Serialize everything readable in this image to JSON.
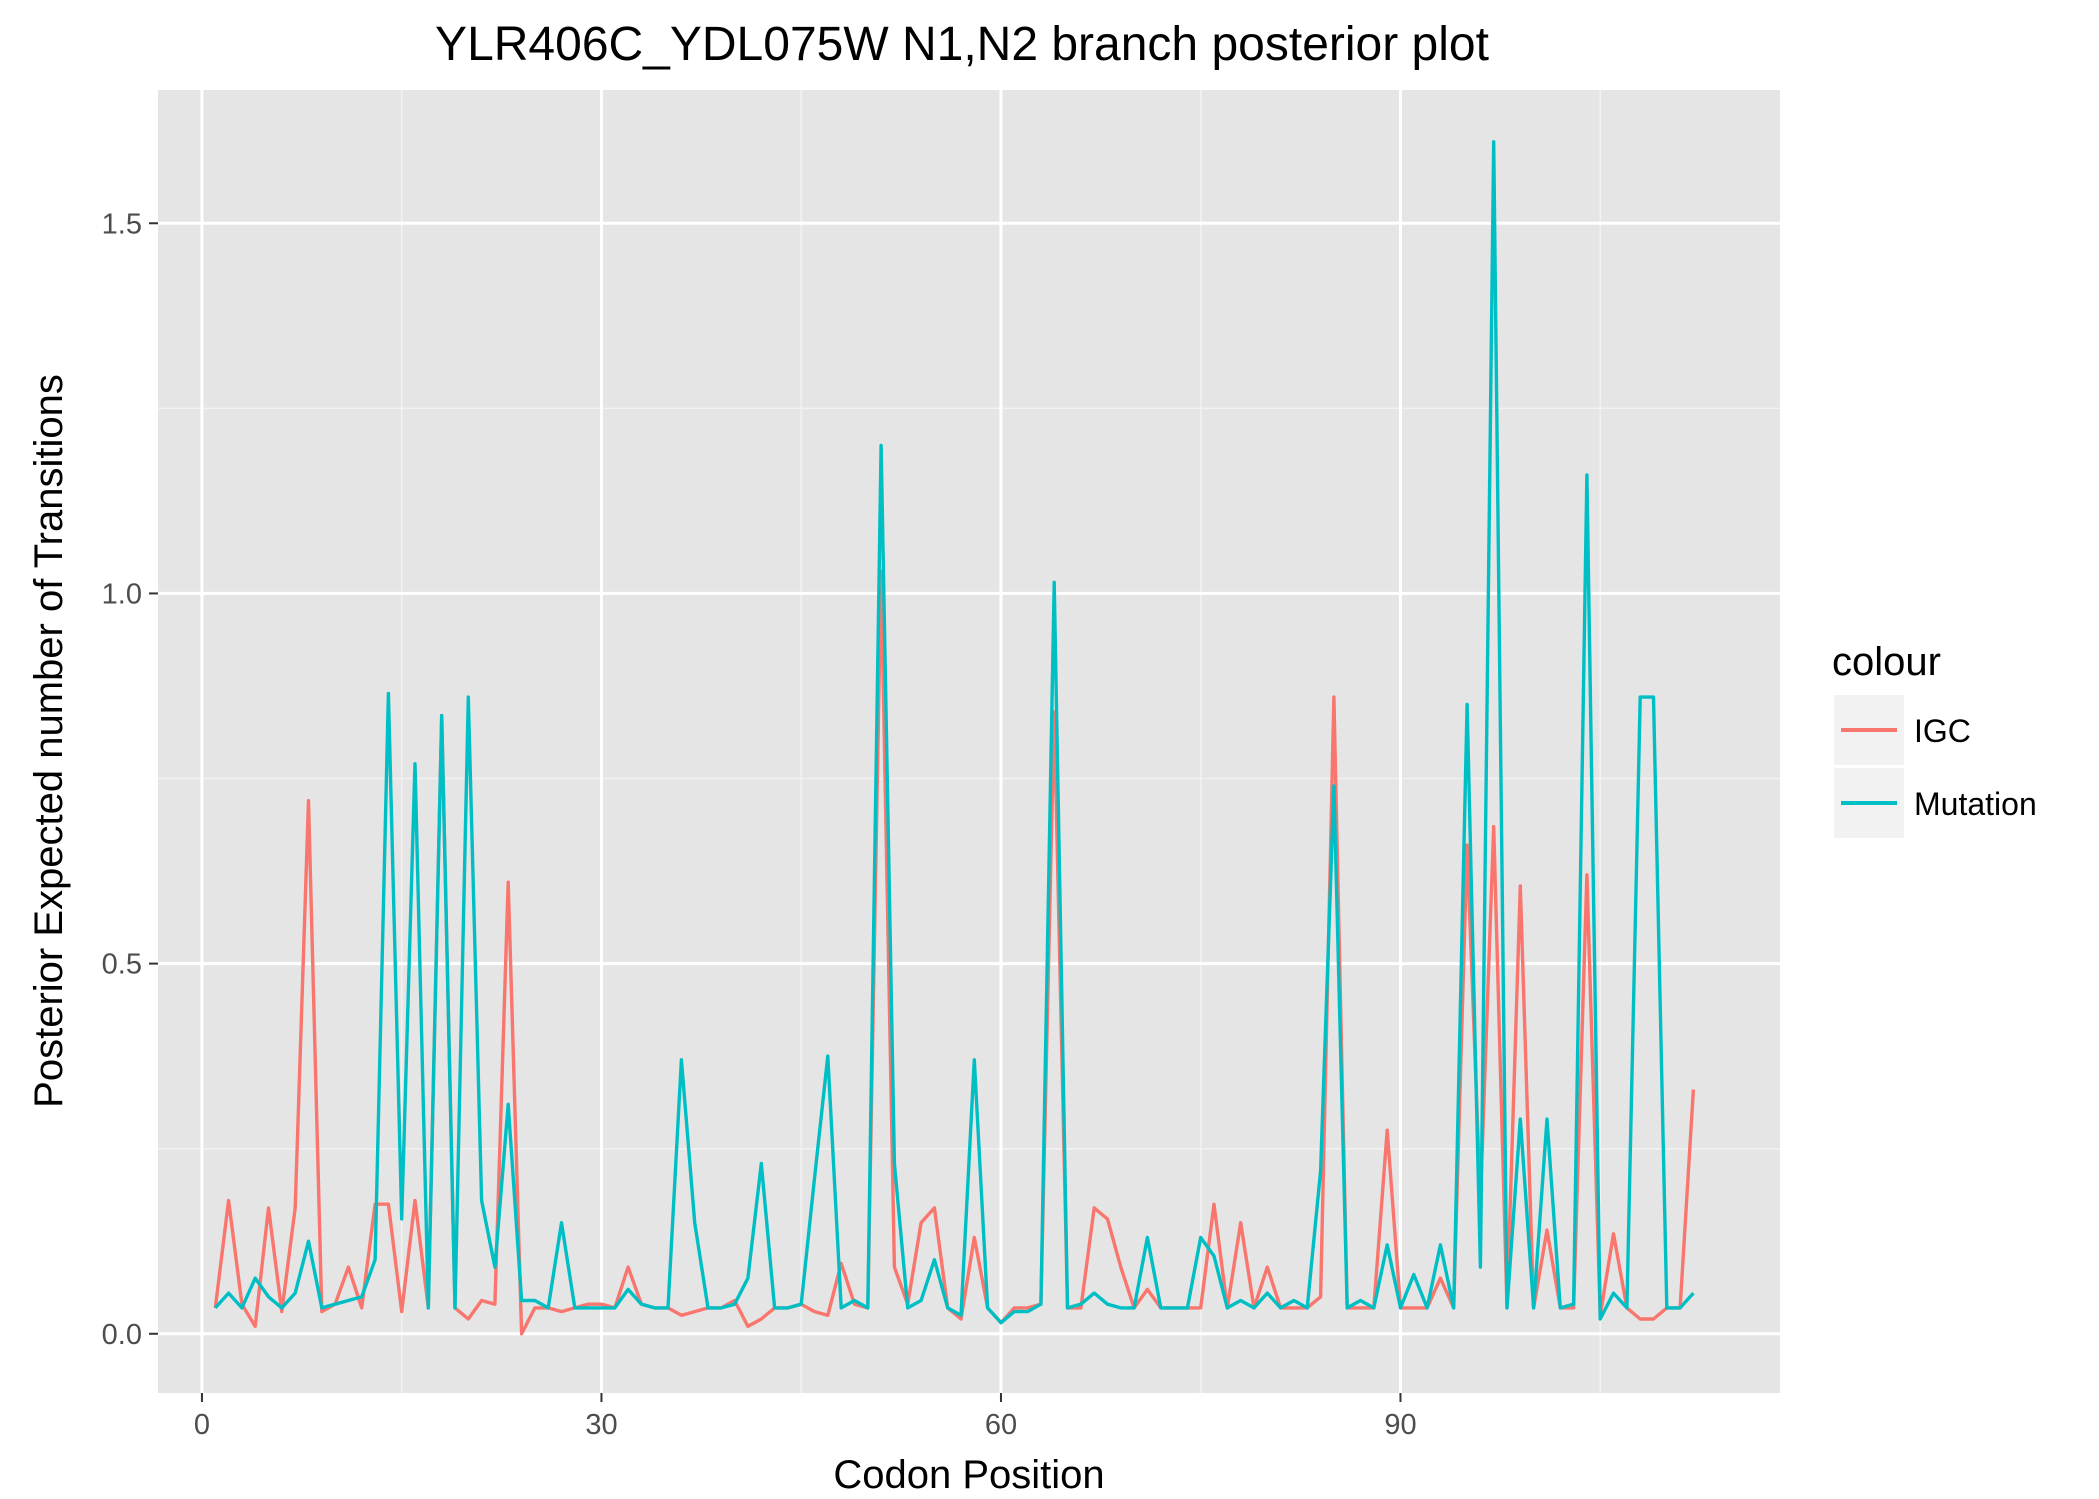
{
  "chart_data": {
    "type": "line",
    "title": "YLR406C_YDL075W N1,N2 branch posterior plot",
    "xlabel": "Codon Position",
    "ylabel": "Posterior Expected number of Transitions",
    "xlim": [
      -3.3,
      118.5
    ],
    "ylim": [
      -0.08,
      1.68
    ],
    "xticks": [
      0,
      30,
      60,
      90
    ],
    "xtick_labels": [
      "0",
      "30",
      "60",
      "90"
    ],
    "yticks": [
      0.0,
      0.5,
      1.0,
      1.5
    ],
    "ytick_labels": [
      "0.0",
      "0.5",
      "1.0",
      "1.5"
    ],
    "grid": true,
    "legend": {
      "title": "colour",
      "position": "right"
    },
    "series": [
      {
        "name": "IGC",
        "color": "#F8766D",
        "x": [
          1,
          2,
          3,
          4,
          5,
          6,
          7,
          8,
          9,
          10,
          11,
          12,
          13,
          14,
          15,
          16,
          17,
          18,
          19,
          20,
          21,
          22,
          23,
          24,
          25,
          26,
          27,
          28,
          29,
          30,
          31,
          32,
          33,
          34,
          35,
          36,
          37,
          38,
          39,
          40,
          41,
          42,
          43,
          44,
          45,
          46,
          47,
          48,
          49,
          50,
          51,
          52,
          53,
          54,
          55,
          56,
          57,
          58,
          59,
          60,
          61,
          62,
          63,
          64,
          65,
          66,
          67,
          68,
          69,
          70,
          71,
          72,
          73,
          74,
          75,
          76,
          77,
          78,
          79,
          80,
          81,
          82,
          83,
          84,
          85,
          86,
          87,
          88,
          89,
          90,
          91,
          92,
          93,
          94,
          95,
          96,
          97,
          98,
          99,
          100,
          101,
          102,
          103,
          104,
          105,
          106,
          107,
          108,
          109,
          110,
          111,
          112
        ],
        "values": [
          0.035,
          0.18,
          0.04,
          0.01,
          0.17,
          0.03,
          0.17,
          0.72,
          0.03,
          0.04,
          0.09,
          0.035,
          0.175,
          0.175,
          0.03,
          0.18,
          0.035,
          0.835,
          0.035,
          0.02,
          0.045,
          0.04,
          0.61,
          0.0,
          0.035,
          0.035,
          0.03,
          0.035,
          0.04,
          0.04,
          0.035,
          0.09,
          0.04,
          0.035,
          0.035,
          0.025,
          0.03,
          0.035,
          0.035,
          0.045,
          0.01,
          0.02,
          0.035,
          0.035,
          0.04,
          0.03,
          0.025,
          0.095,
          0.04,
          0.035,
          1.03,
          0.09,
          0.04,
          0.15,
          0.17,
          0.035,
          0.02,
          0.13,
          0.035,
          0.015,
          0.035,
          0.035,
          0.04,
          0.84,
          0.035,
          0.035,
          0.17,
          0.155,
          0.09,
          0.035,
          0.06,
          0.035,
          0.035,
          0.035,
          0.035,
          0.175,
          0.035,
          0.15,
          0.035,
          0.09,
          0.035,
          0.035,
          0.035,
          0.05,
          0.86,
          0.035,
          0.035,
          0.035,
          0.275,
          0.035,
          0.035,
          0.035,
          0.075,
          0.035,
          0.66,
          0.18,
          0.685,
          0.035,
          0.605,
          0.035,
          0.14,
          0.035,
          0.035,
          0.62,
          0.025,
          0.135,
          0.035,
          0.02,
          0.02,
          0.035,
          0.035,
          0.33
        ]
      },
      {
        "name": "Mutation",
        "color": "#00BFC4",
        "x": [
          1,
          2,
          3,
          4,
          5,
          6,
          7,
          8,
          9,
          10,
          11,
          12,
          13,
          14,
          15,
          16,
          17,
          18,
          19,
          20,
          21,
          22,
          23,
          24,
          25,
          26,
          27,
          28,
          29,
          30,
          31,
          32,
          33,
          34,
          35,
          36,
          37,
          38,
          39,
          40,
          41,
          42,
          43,
          44,
          45,
          46,
          47,
          48,
          49,
          50,
          51,
          52,
          53,
          54,
          55,
          56,
          57,
          58,
          59,
          60,
          61,
          62,
          63,
          64,
          65,
          66,
          67,
          68,
          69,
          70,
          71,
          72,
          73,
          74,
          75,
          76,
          77,
          78,
          79,
          80,
          81,
          82,
          83,
          84,
          85,
          86,
          87,
          88,
          89,
          90,
          91,
          92,
          93,
          94,
          95,
          96,
          97,
          98,
          99,
          100,
          101,
          102,
          103,
          104,
          105,
          106,
          107,
          108,
          109,
          110,
          111,
          112
        ],
        "values": [
          0.035,
          0.055,
          0.035,
          0.075,
          0.05,
          0.035,
          0.055,
          0.125,
          0.035,
          0.04,
          0.045,
          0.05,
          0.1,
          0.865,
          0.155,
          0.77,
          0.035,
          0.835,
          0.035,
          0.86,
          0.18,
          0.09,
          0.31,
          0.045,
          0.045,
          0.035,
          0.15,
          0.035,
          0.035,
          0.035,
          0.035,
          0.06,
          0.04,
          0.035,
          0.035,
          0.37,
          0.15,
          0.035,
          0.035,
          0.04,
          0.075,
          0.23,
          0.035,
          0.035,
          0.04,
          0.21,
          0.375,
          0.035,
          0.045,
          0.035,
          1.2,
          0.23,
          0.035,
          0.045,
          0.1,
          0.035,
          0.025,
          0.37,
          0.035,
          0.015,
          0.03,
          0.03,
          0.04,
          1.015,
          0.035,
          0.04,
          0.055,
          0.04,
          0.035,
          0.035,
          0.13,
          0.035,
          0.035,
          0.035,
          0.13,
          0.105,
          0.035,
          0.045,
          0.035,
          0.055,
          0.035,
          0.045,
          0.035,
          0.22,
          0.74,
          0.035,
          0.045,
          0.035,
          0.12,
          0.035,
          0.08,
          0.035,
          0.12,
          0.035,
          0.85,
          0.09,
          1.61,
          0.035,
          0.29,
          0.035,
          0.29,
          0.035,
          0.04,
          1.16,
          0.02,
          0.055,
          0.035,
          0.86,
          0.86,
          0.035,
          0.035,
          0.055
        ]
      }
    ]
  }
}
